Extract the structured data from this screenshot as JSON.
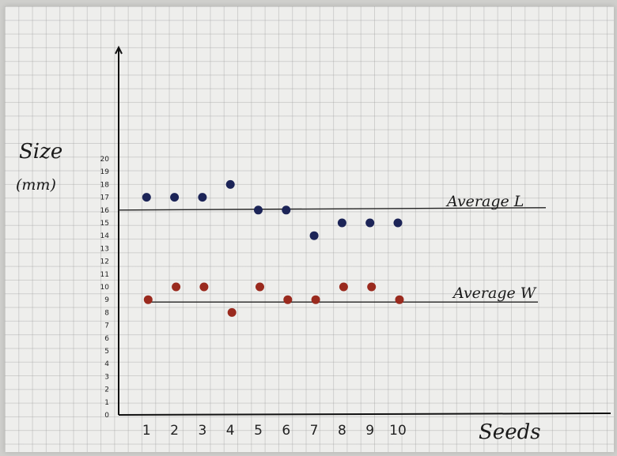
{
  "chart_data": {
    "type": "scatter",
    "title": "",
    "xlabel": "Seeds",
    "ylabel": "Size",
    "ylabel_unit": "(mm)",
    "x": [
      1,
      2,
      3,
      4,
      5,
      6,
      7,
      8,
      9,
      10
    ],
    "x_ticks": [
      "1",
      "2",
      "3",
      "4",
      "5",
      "6",
      "7",
      "8",
      "9",
      "10"
    ],
    "y_ticks": [
      "0",
      "1",
      "2",
      "3",
      "4",
      "5",
      "6",
      "7",
      "8",
      "9",
      "10",
      "11",
      "12",
      "13",
      "14",
      "15",
      "16",
      "17",
      "18",
      "19",
      "20"
    ],
    "ylim": [
      0,
      20
    ],
    "xlim": [
      0,
      11
    ],
    "series": [
      {
        "color": "#1c2457",
        "values": [
          17,
          17,
          17,
          18,
          16,
          16,
          14,
          15,
          15,
          15
        ]
      },
      {
        "color": "#9a2a1e",
        "values": [
          9,
          10,
          10,
          8,
          10,
          9,
          9,
          10,
          10,
          9
        ]
      }
    ],
    "reference_lines": [
      {
        "label": "Average L",
        "y": 16
      },
      {
        "label": "Average W",
        "y": 9
      }
    ],
    "grid": true
  }
}
